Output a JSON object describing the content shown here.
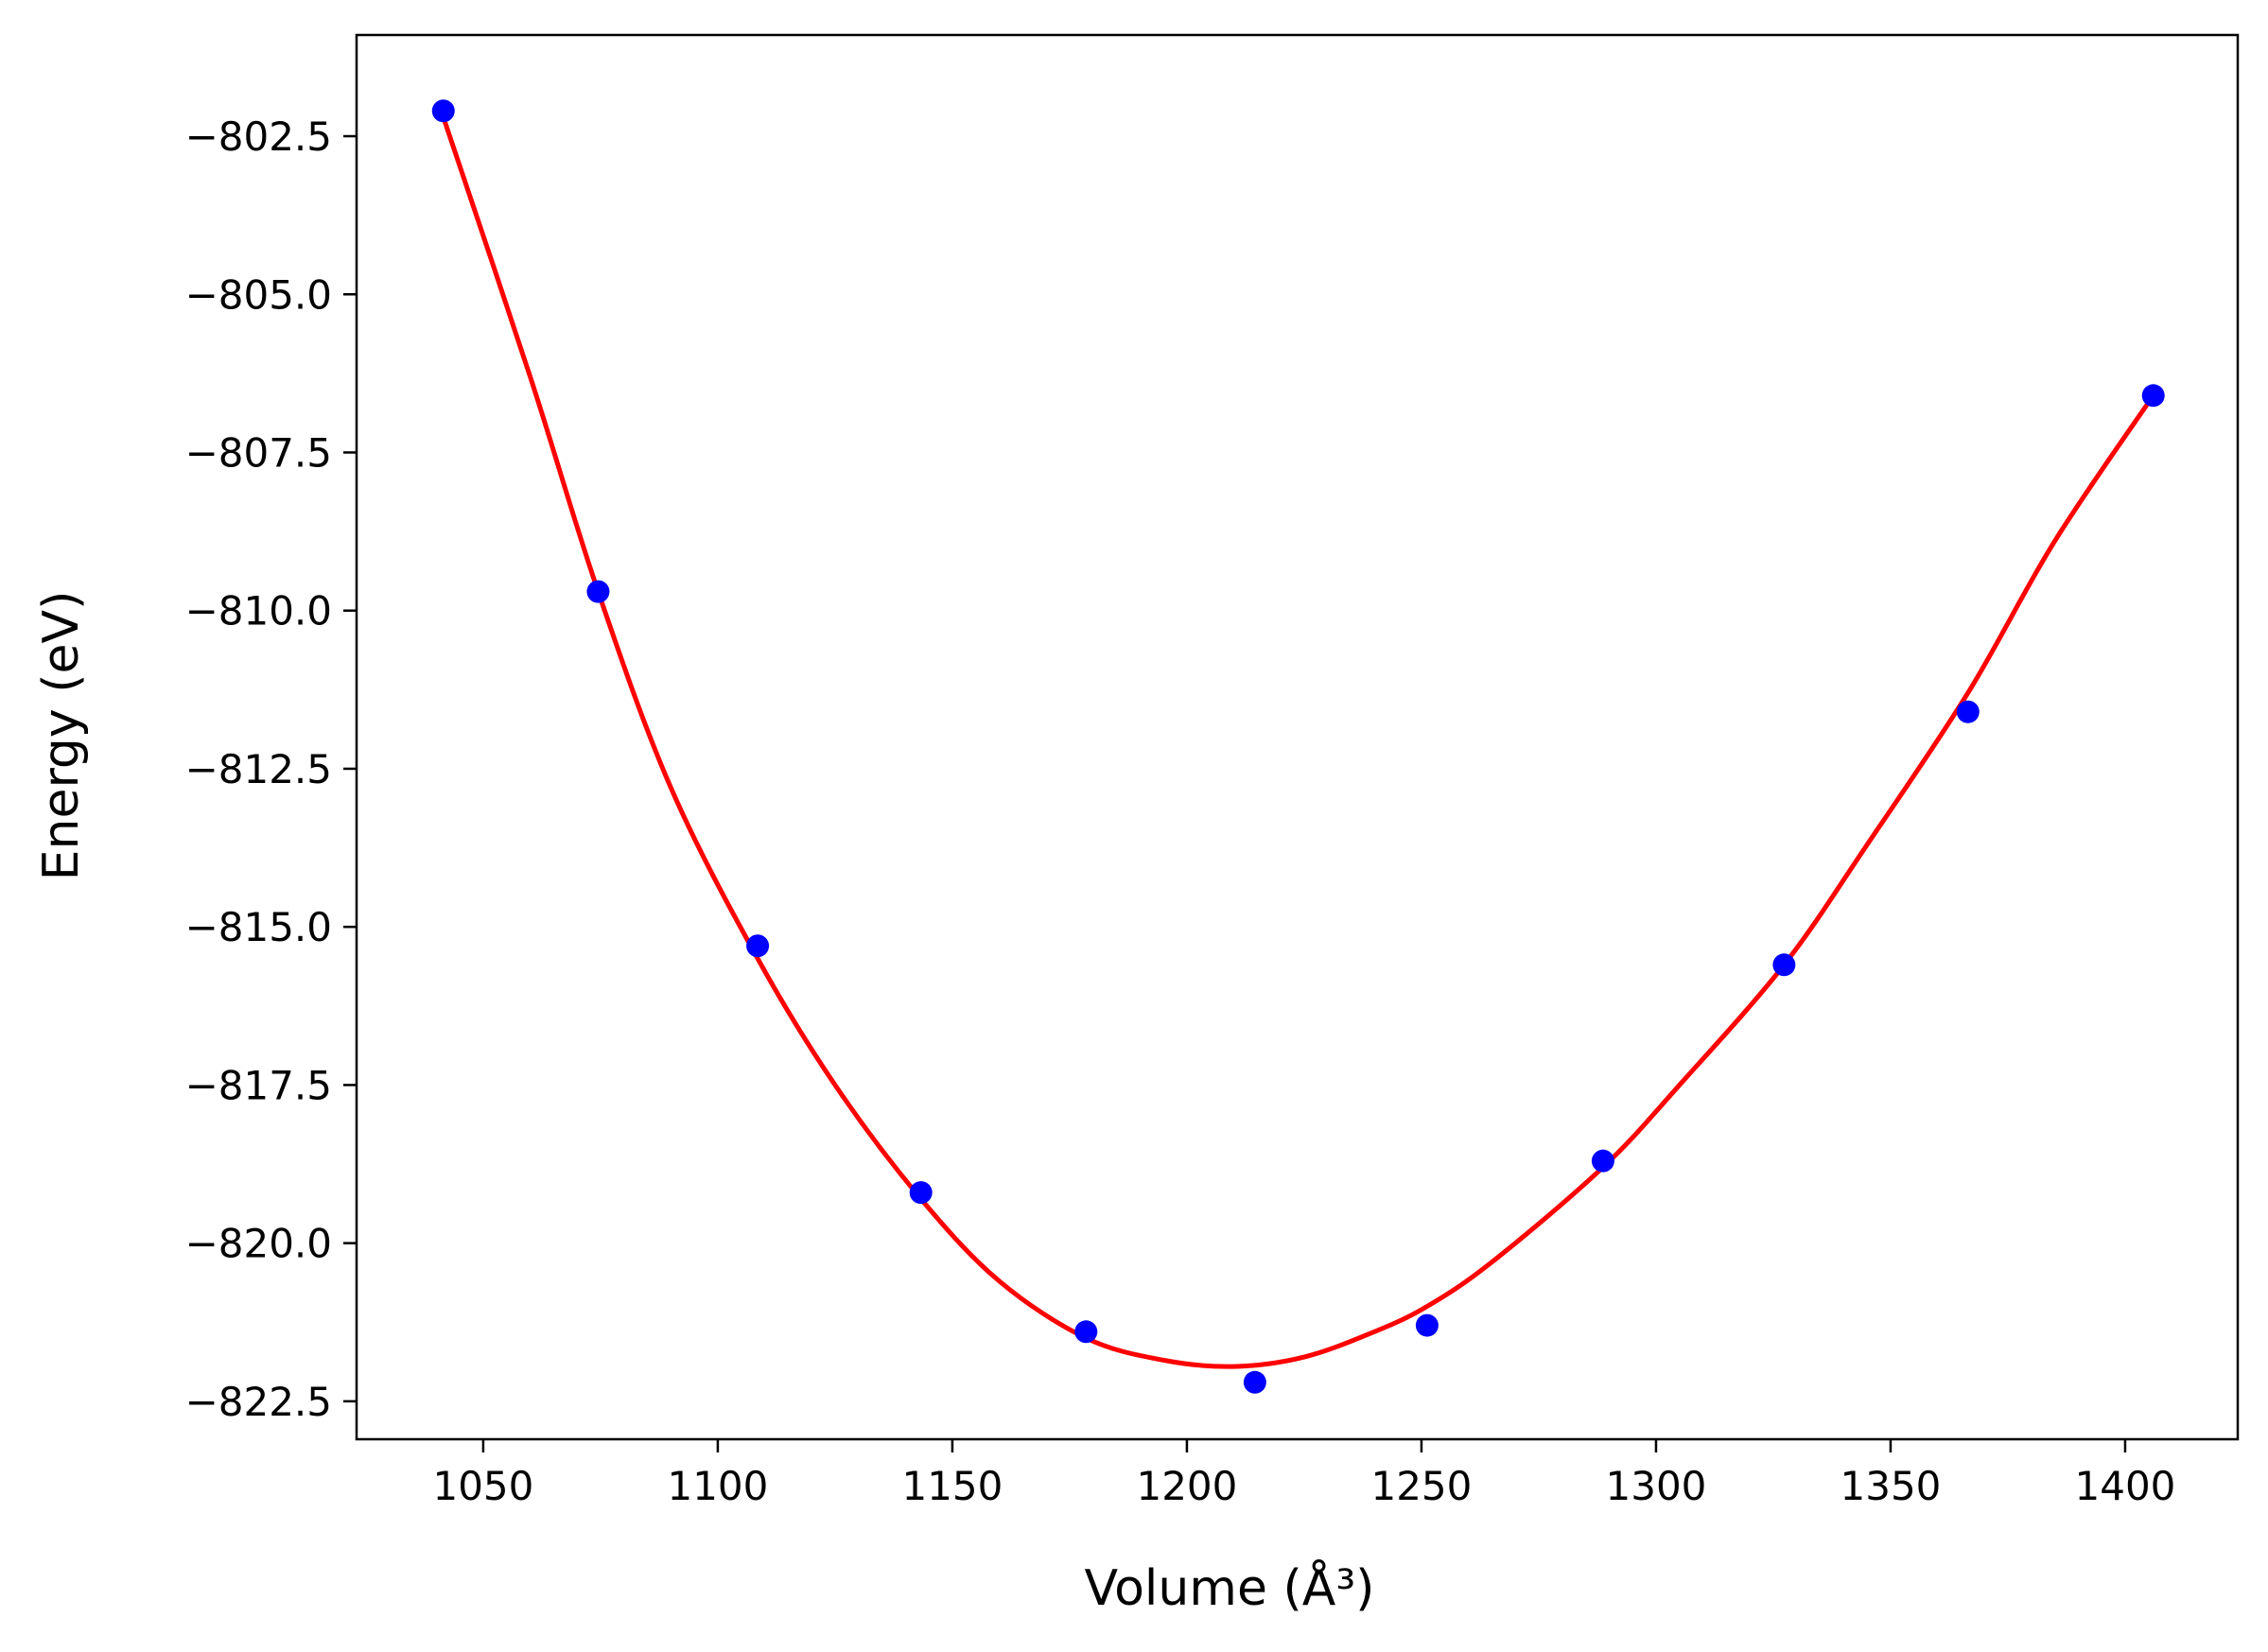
{
  "chart_data": {
    "type": "scatter",
    "xlabel": "Volume (Å³)",
    "ylabel": "Energy (eV)",
    "xlim": [
      1023,
      1424
    ],
    "ylim": [
      -823.1,
      -800.9
    ],
    "x_ticks": [
      1050,
      1100,
      1150,
      1200,
      1250,
      1300,
      1350,
      1400
    ],
    "x_tick_labels": [
      "1050",
      "1100",
      "1150",
      "1200",
      "1250",
      "1300",
      "1350",
      "1400"
    ],
    "y_ticks": [
      -802.5,
      -805.0,
      -807.5,
      -810.0,
      -812.5,
      -815.0,
      -817.5,
      -820.0,
      -822.5
    ],
    "y_tick_labels": [
      "−802.5",
      "−805.0",
      "−807.5",
      "−810.0",
      "−812.5",
      "−815.0",
      "−817.5",
      "−820.0",
      "−822.5"
    ],
    "grid": false,
    "series": [
      {
        "kind": "points",
        "color": "#0000ff",
        "x": [
          1041.5,
          1074.5,
          1108.5,
          1143.3,
          1178.5,
          1214.5,
          1251.2,
          1288.7,
          1327.3,
          1366.5,
          1406.0
        ],
        "y": [
          -802.1,
          -809.7,
          -815.3,
          -819.2,
          -821.4,
          -822.2,
          -821.3,
          -818.7,
          -815.6,
          -811.6,
          -806.6
        ]
      },
      {
        "kind": "fit-curve",
        "color": "#ff0000",
        "x": [
          1041.5,
          1060,
          1074.5,
          1090,
          1108.5,
          1125,
          1143.3,
          1160,
          1178.5,
          1195,
          1210,
          1225,
          1240,
          1251.2,
          1265,
          1288.7,
          1305,
          1327.3,
          1345,
          1366.5,
          1385,
          1406.0
        ],
        "y": [
          -802.2,
          -806.3,
          -809.7,
          -812.8,
          -815.5,
          -817.5,
          -819.3,
          -820.6,
          -821.5,
          -821.85,
          -821.95,
          -821.8,
          -821.4,
          -821.0,
          -820.3,
          -818.8,
          -817.5,
          -815.6,
          -813.7,
          -811.3,
          -808.9,
          -806.6
        ]
      }
    ]
  }
}
